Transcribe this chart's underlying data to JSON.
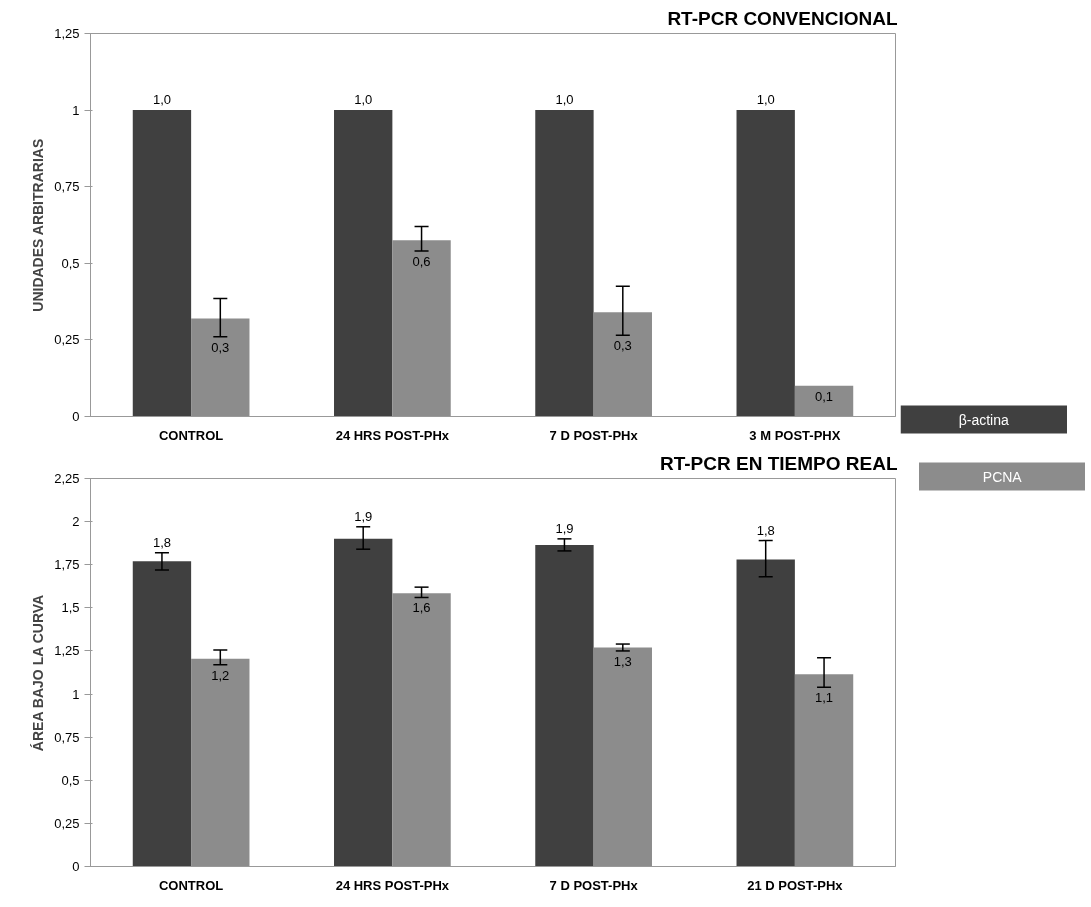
{
  "chart_data": [
    {
      "type": "bar",
      "title": "RT-PCR CONVENCIONAL",
      "ylabel": "UNIDADES ARBITRARIAS",
      "categories": [
        "CONTROL",
        "24 HRS POST-PHx",
        "7 D POST-PHx",
        "3 M POST-PHX"
      ],
      "series": [
        {
          "name": "β-actina",
          "color": "#404040",
          "values": [
            1,
            1,
            1,
            1
          ],
          "value_labels": [
            "1,0",
            "1,0",
            "1,0",
            "1,0"
          ],
          "errors": [
            null,
            null,
            null,
            null
          ]
        },
        {
          "name": "PCNA",
          "color": "#8c8c8c",
          "values": [
            0.32,
            0.575,
            0.34,
            0.1
          ],
          "value_labels": [
            "0,3",
            "0,6",
            "0,3",
            "0,1"
          ],
          "errors": [
            [
              0.26,
              0.385
            ],
            [
              0.54,
              0.62
            ],
            [
              0.265,
              0.425
            ],
            null
          ]
        }
      ],
      "ylim": [
        0,
        1.25
      ],
      "yticks": [
        0,
        {
          "value": 0.25,
          "label": "0,25"
        },
        {
          "value": 0.5,
          "label": "0,5"
        },
        {
          "value": 0.75,
          "label": "0,75"
        },
        1,
        {
          "value": 1.25,
          "label": "1,25"
        }
      ],
      "grid": false,
      "legend": "right"
    },
    {
      "type": "bar",
      "title": "RT-PCR EN TIEMPO REAL",
      "ylabel": "ÁREA BAJO LA CURVA",
      "categories": [
        "CONTROL",
        "24 HRS POST-PHx",
        "7 D POST-PHx",
        "21 D POST-PHx"
      ],
      "series": [
        {
          "color": "#404040",
          "values": [
            1.77,
            1.9,
            1.865,
            1.78
          ],
          "value_labels": [
            "1,8",
            "1,9",
            "1,9",
            "1,8"
          ],
          "errors": [
            [
              1.72,
              1.82
            ],
            [
              1.84,
              1.97
            ],
            [
              1.83,
              1.9
            ],
            [
              1.68,
              1.89
            ]
          ]
        },
        {
          "color": "#8c8c8c",
          "values": [
            1.205,
            1.585,
            1.27,
            1.115
          ],
          "value_labels": [
            "1,2",
            "1,6",
            "1,3",
            "1,1"
          ],
          "errors": [
            [
              1.17,
              1.255
            ],
            [
              1.56,
              1.62
            ],
            [
              1.25,
              1.29
            ],
            [
              1.04,
              1.21
            ]
          ]
        }
      ],
      "ylim": [
        0,
        2.25
      ],
      "yticks": [
        0,
        {
          "value": 0.25,
          "label": "0,25"
        },
        {
          "value": 0.5,
          "label": "0,5"
        },
        {
          "value": 0.75,
          "label": "0,75"
        },
        1,
        {
          "value": 1.25,
          "label": "1,25"
        },
        {
          "value": 1.5,
          "label": "1,5"
        },
        {
          "value": 1.75,
          "label": "1,75"
        },
        2,
        {
          "value": 2.25,
          "label": "2,25"
        }
      ],
      "grid": false
    }
  ]
}
